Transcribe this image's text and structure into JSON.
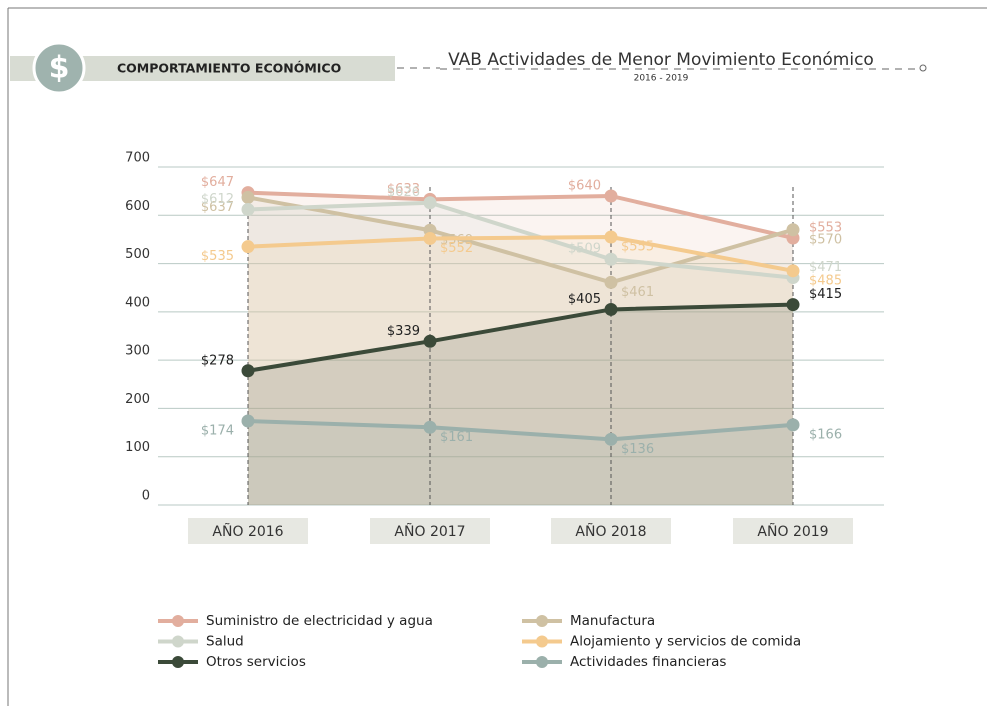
{
  "header": {
    "icon": "$",
    "section": "COMPORTAMIENTO ECONÓMICO"
  },
  "chart_data": {
    "type": "line",
    "title": "VAB Actividades de Menor Movimiento Económico",
    "subtitle": "2016 - 2019",
    "categories": [
      "AÑO 2016",
      "AÑO 2017",
      "AÑO 2018",
      "AÑO 2019"
    ],
    "ylim": [
      0,
      700
    ],
    "yticks": [
      0,
      100,
      200,
      300,
      400,
      500,
      600,
      700
    ],
    "grid": true,
    "series": [
      {
        "name": "Suministro de electricidad y agua",
        "color": "#e2ae9e",
        "values": [
          647,
          633,
          640,
          553
        ],
        "value_labels": [
          "$647",
          "$633",
          "$640",
          "$553"
        ]
      },
      {
        "name": "Manufactura",
        "color": "#cfc1a3",
        "values": [
          637,
          569,
          461,
          570
        ],
        "value_labels": [
          "$637",
          "$569",
          "$461",
          "$570"
        ]
      },
      {
        "name": "Salud",
        "color": "#cfd6cb",
        "values": [
          612,
          626,
          509,
          471
        ],
        "value_labels": [
          "$612",
          "$626",
          "$509",
          "$471"
        ]
      },
      {
        "name": "Alojamiento y servicios de comida",
        "color": "#f4ca8e",
        "values": [
          535,
          552,
          555,
          485
        ],
        "value_labels": [
          "$535",
          "$552",
          "$555",
          "$485"
        ]
      },
      {
        "name": "Otros servicios",
        "color": "#3b4a39",
        "values": [
          278,
          339,
          405,
          415
        ],
        "value_labels": [
          "$278",
          "$339",
          "$405",
          "$415"
        ]
      },
      {
        "name": "Actividades financieras",
        "color": "#9bb0ab",
        "values": [
          174,
          161,
          136,
          166
        ],
        "value_labels": [
          "$174",
          "$161",
          "$136",
          "$166"
        ]
      }
    ]
  }
}
